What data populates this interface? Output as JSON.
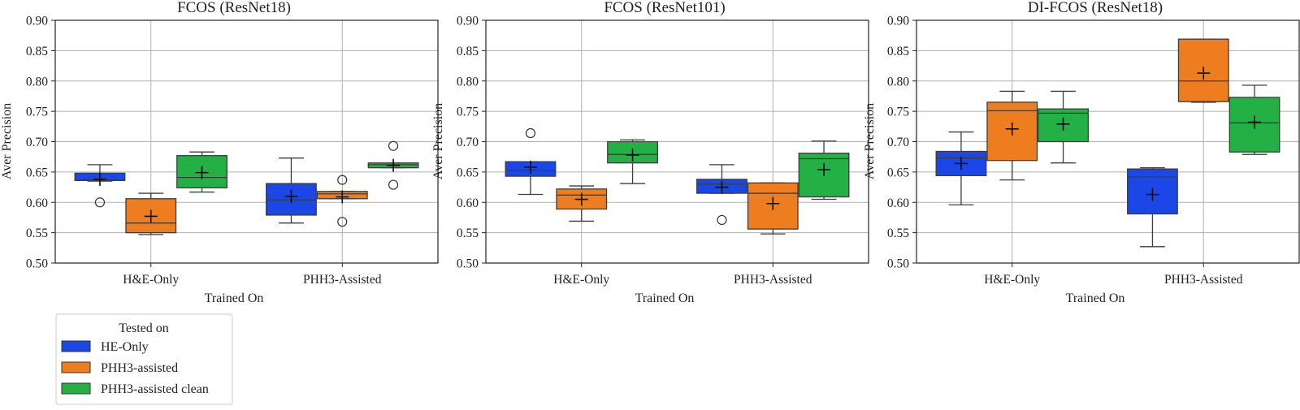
{
  "figure": {
    "legend": {
      "title": "Tested on",
      "entries": [
        {
          "label": "HE-Only",
          "color": "#1a47e6"
        },
        {
          "label": "PHH3-assisted",
          "color": "#ee7d1f"
        },
        {
          "label": "PHH3-assisted clean",
          "color": "#23b146"
        }
      ]
    }
  },
  "chart_data": [
    {
      "type": "box",
      "title": "FCOS (ResNet18)",
      "xlabel": "Trained On",
      "ylabel": "Aver Precision",
      "ylim": [
        0.5,
        0.9
      ],
      "yticks": [
        "0.50",
        "0.55",
        "0.60",
        "0.65",
        "0.70",
        "0.75",
        "0.80",
        "0.85",
        "0.90"
      ],
      "categories": [
        "H&E-Only",
        "PHH3-Assisted"
      ],
      "grid": true,
      "series": [
        {
          "name": "HE-Only",
          "boxes": [
            {
              "whislo": 0.635,
              "q1": 0.636,
              "med": 0.637,
              "q3": 0.648,
              "whishi": 0.662,
              "mean": 0.638,
              "fliers": [
                0.6
              ]
            },
            {
              "whislo": 0.566,
              "q1": 0.579,
              "med": 0.604,
              "q3": 0.631,
              "whishi": 0.673,
              "mean": 0.61,
              "fliers": []
            }
          ]
        },
        {
          "name": "PHH3-assisted",
          "boxes": [
            {
              "whislo": 0.547,
              "q1": 0.55,
              "med": 0.566,
              "q3": 0.606,
              "whishi": 0.615,
              "mean": 0.577,
              "fliers": []
            },
            {
              "whislo": 0.606,
              "q1": 0.606,
              "med": 0.614,
              "q3": 0.618,
              "whishi": 0.618,
              "mean": 0.609,
              "fliers": [
                0.637,
                0.568
              ]
            }
          ]
        },
        {
          "name": "PHH3-assisted clean",
          "boxes": [
            {
              "whislo": 0.617,
              "q1": 0.624,
              "med": 0.641,
              "q3": 0.677,
              "whishi": 0.683,
              "mean": 0.649,
              "fliers": []
            },
            {
              "whislo": 0.657,
              "q1": 0.657,
              "med": 0.662,
              "q3": 0.665,
              "whishi": 0.665,
              "mean": 0.661,
              "fliers": [
                0.693,
                0.629
              ]
            }
          ]
        }
      ]
    },
    {
      "type": "box",
      "title": "FCOS (ResNet101)",
      "xlabel": "Trained On",
      "ylabel": "Aver Precision",
      "ylim": [
        0.5,
        0.9
      ],
      "yticks": [
        "0.50",
        "0.55",
        "0.60",
        "0.65",
        "0.70",
        "0.75",
        "0.80",
        "0.85",
        "0.90"
      ],
      "categories": [
        "H&E-Only",
        "PHH3-Assisted"
      ],
      "grid": true,
      "series": [
        {
          "name": "HE-Only",
          "boxes": [
            {
              "whislo": 0.613,
              "q1": 0.643,
              "med": 0.653,
              "q3": 0.667,
              "whishi": 0.667,
              "mean": 0.658,
              "fliers": [
                0.714
              ]
            },
            {
              "whislo": 0.615,
              "q1": 0.615,
              "med": 0.63,
              "q3": 0.638,
              "whishi": 0.662,
              "mean": 0.625,
              "fliers": [
                0.571
              ]
            }
          ]
        },
        {
          "name": "PHH3-assisted",
          "boxes": [
            {
              "whislo": 0.569,
              "q1": 0.589,
              "med": 0.612,
              "q3": 0.622,
              "whishi": 0.627,
              "mean": 0.605,
              "fliers": []
            },
            {
              "whislo": 0.548,
              "q1": 0.556,
              "med": 0.615,
              "q3": 0.632,
              "whishi": 0.632,
              "mean": 0.598,
              "fliers": []
            }
          ]
        },
        {
          "name": "PHH3-assisted clean",
          "boxes": [
            {
              "whislo": 0.631,
              "q1": 0.665,
              "med": 0.679,
              "q3": 0.7,
              "whishi": 0.703,
              "mean": 0.678,
              "fliers": []
            },
            {
              "whislo": 0.605,
              "q1": 0.609,
              "med": 0.672,
              "q3": 0.681,
              "whishi": 0.701,
              "mean": 0.654,
              "fliers": []
            }
          ]
        }
      ]
    },
    {
      "type": "box",
      "title": "DI-FCOS (ResNet18)",
      "xlabel": "Trained On",
      "ylabel": "Aver Precision",
      "ylim": [
        0.5,
        0.9
      ],
      "yticks": [
        "0.50",
        "0.55",
        "0.60",
        "0.65",
        "0.70",
        "0.75",
        "0.80",
        "0.85",
        "0.90"
      ],
      "categories": [
        "H&E-Only",
        "PHH3-Assisted"
      ],
      "grid": true,
      "series": [
        {
          "name": "HE-Only",
          "boxes": [
            {
              "whislo": 0.596,
              "q1": 0.644,
              "med": 0.673,
              "q3": 0.684,
              "whishi": 0.716,
              "mean": 0.664,
              "fliers": []
            },
            {
              "whislo": 0.527,
              "q1": 0.581,
              "med": 0.642,
              "q3": 0.655,
              "whishi": 0.657,
              "mean": 0.613,
              "fliers": []
            }
          ]
        },
        {
          "name": "PHH3-assisted",
          "boxes": [
            {
              "whislo": 0.637,
              "q1": 0.669,
              "med": 0.751,
              "q3": 0.765,
              "whishi": 0.783,
              "mean": 0.721,
              "fliers": []
            },
            {
              "whislo": 0.765,
              "q1": 0.766,
              "med": 0.8,
              "q3": 0.869,
              "whishi": 0.869,
              "mean": 0.813,
              "fliers": []
            }
          ]
        },
        {
          "name": "PHH3-assisted clean",
          "boxes": [
            {
              "whislo": 0.665,
              "q1": 0.7,
              "med": 0.747,
              "q3": 0.754,
              "whishi": 0.783,
              "mean": 0.729,
              "fliers": []
            },
            {
              "whislo": 0.679,
              "q1": 0.683,
              "med": 0.731,
              "q3": 0.773,
              "whishi": 0.793,
              "mean": 0.732,
              "fliers": []
            }
          ]
        }
      ]
    }
  ]
}
